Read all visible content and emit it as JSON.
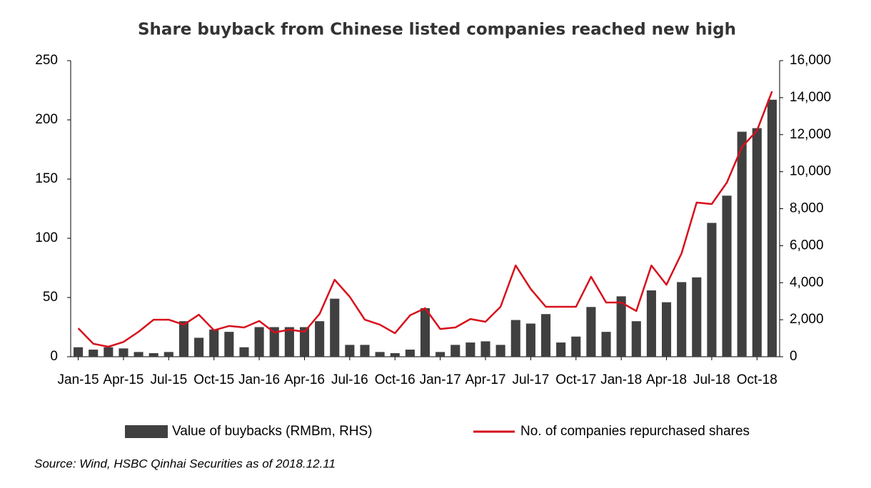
{
  "chart_data": {
    "type": "bar-line",
    "title": "Share buyback from Chinese listed companies reached new high",
    "source": "Source: Wind, HSBC Qinhai Securities as of 2018.12.11",
    "legend": "bottom",
    "categories": [
      "Jan-15",
      null,
      null,
      "Apr-15",
      null,
      null,
      "Jul-15",
      null,
      null,
      "Oct-15",
      null,
      null,
      "Jan-16",
      null,
      null,
      "Apr-16",
      null,
      null,
      "Jul-16",
      null,
      null,
      "Oct-16",
      null,
      null,
      "Jan-17",
      null,
      null,
      "Apr-17",
      null,
      null,
      "Jul-17",
      null,
      null,
      "Oct-17",
      null,
      null,
      "Jan-18",
      null,
      null,
      "Apr-18",
      null,
      null,
      "Jul-18",
      null,
      null,
      "Oct-18",
      null
    ],
    "series": [
      {
        "name": "Value of buybacks (RMBm, RHS)",
        "type": "bar",
        "color": "#404040",
        "values": [
          8,
          6,
          8,
          7,
          4,
          3,
          4,
          30,
          16,
          23,
          21,
          8,
          25,
          25,
          25,
          25,
          30,
          49,
          10,
          10,
          4,
          3,
          6,
          41,
          4,
          10,
          12,
          13,
          10,
          31,
          28,
          36,
          12,
          17,
          42,
          21,
          51,
          30,
          56,
          46,
          63,
          67,
          113,
          136,
          190,
          193,
          217
        ]
      },
      {
        "name": "No. of companies repurchased shares",
        "type": "line",
        "axis": "y2",
        "color": "#d7101c",
        "values": [
          1540,
          700,
          540,
          800,
          1350,
          2000,
          2000,
          1730,
          2270,
          1430,
          1660,
          1580,
          1930,
          1310,
          1460,
          1350,
          2310,
          4160,
          3240,
          2000,
          1730,
          1270,
          2240,
          2620,
          1500,
          1580,
          2040,
          1890,
          2700,
          4930,
          3660,
          2700,
          2700,
          2700,
          4320,
          2930,
          2930,
          2470,
          4930,
          3890,
          5590,
          8330,
          8250,
          9410,
          11330,
          12220,
          14340
        ]
      }
    ],
    "ylim": [
      0,
      250
    ],
    "yticks": [
      0,
      50,
      100,
      150,
      200,
      250
    ],
    "y2lim": [
      0,
      16000
    ],
    "y2ticks": [
      0,
      {
        "value": 2000,
        "label": "2,000"
      },
      {
        "value": 4000,
        "label": "4,000"
      },
      {
        "value": 6000,
        "label": "6,000"
      },
      {
        "value": 8000,
        "label": "8,000"
      },
      {
        "value": 10000,
        "label": "10,000"
      },
      {
        "value": 12000,
        "label": "12,000"
      },
      {
        "value": 14000,
        "label": "14,000"
      },
      {
        "value": 16000,
        "label": "16,000"
      }
    ],
    "grid": false
  }
}
